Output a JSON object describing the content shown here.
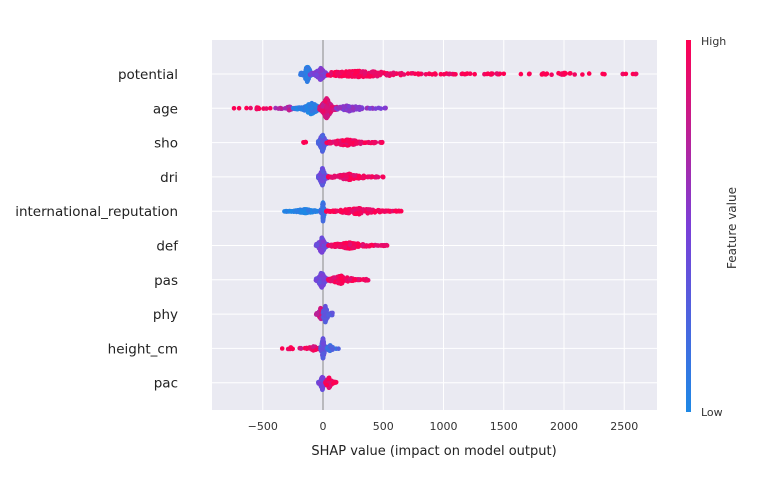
{
  "chart_data": {
    "type": "scatter",
    "subtype": "shap-beeswarm",
    "title": "",
    "xlabel": "SHAP value (impact on model output)",
    "ylabel": "",
    "xlim": [
      -930,
      2800
    ],
    "xticks": [
      -500,
      0,
      500,
      1000,
      1500,
      2000,
      2500
    ],
    "xtick_labels": [
      "−500",
      "0",
      "500",
      "1000",
      "1500",
      "2000",
      "2500"
    ],
    "grid": true,
    "colorbar": {
      "title": "Feature value",
      "high_label": "High",
      "low_label": "Low",
      "low_color": "#1e88e5",
      "high_color": "#ff0052"
    },
    "background_color": "#eaeaf2",
    "features": [
      {
        "name": "potential",
        "clusters": [
          {
            "min": -190,
            "max": -90,
            "center": -130,
            "spread": 8,
            "color": 0.08,
            "n": 120
          },
          {
            "min": -110,
            "max": 40,
            "center": -20,
            "spread": 6,
            "color": 0.5,
            "n": 140
          },
          {
            "min": 40,
            "max": 1550,
            "center": 300,
            "spread": 3,
            "color": 0.97,
            "n": 260
          },
          {
            "min": 1600,
            "max": 2600,
            "center": 2000,
            "spread": 1,
            "color": 1.0,
            "n": 34
          }
        ]
      },
      {
        "name": "age",
        "clusters": [
          {
            "min": -770,
            "max": -400,
            "center": -550,
            "spread": 1,
            "color": 1.0,
            "n": 12
          },
          {
            "min": -400,
            "max": -180,
            "center": -280,
            "spread": 2,
            "color": 0.7,
            "n": 26
          },
          {
            "min": -250,
            "max": -30,
            "center": -100,
            "spread": 6,
            "color": 0.05,
            "n": 160
          },
          {
            "min": -30,
            "max": 120,
            "center": 30,
            "spread": 10,
            "color": 0.85,
            "n": 260
          },
          {
            "min": 100,
            "max": 520,
            "center": 220,
            "spread": 3,
            "color": 0.55,
            "n": 90
          }
        ]
      },
      {
        "name": "sho",
        "clusters": [
          {
            "min": -200,
            "max": -120,
            "center": -160,
            "spread": 1,
            "color": 1.0,
            "n": 4
          },
          {
            "min": -40,
            "max": 40,
            "center": -5,
            "spread": 9,
            "color": 0.3,
            "n": 160
          },
          {
            "min": 30,
            "max": 500,
            "center": 200,
            "spread": 3,
            "color": 0.95,
            "n": 160
          }
        ]
      },
      {
        "name": "dri",
        "clusters": [
          {
            "min": -40,
            "max": 40,
            "center": -5,
            "spread": 9,
            "color": 0.4,
            "n": 170
          },
          {
            "min": 40,
            "max": 520,
            "center": 220,
            "spread": 3,
            "color": 0.95,
            "n": 150
          }
        ]
      },
      {
        "name": "international_reputation",
        "clusters": [
          {
            "min": -320,
            "max": -20,
            "center": -150,
            "spread": 2,
            "color": 0.02,
            "n": 150
          },
          {
            "min": -20,
            "max": 20,
            "center": 0,
            "spread": 10,
            "color": 0.15,
            "n": 60
          },
          {
            "min": 20,
            "max": 650,
            "center": 300,
            "spread": 3,
            "color": 0.98,
            "n": 200
          }
        ]
      },
      {
        "name": "def",
        "clusters": [
          {
            "min": -60,
            "max": 40,
            "center": -10,
            "spread": 8,
            "color": 0.45,
            "n": 160
          },
          {
            "min": 40,
            "max": 580,
            "center": 220,
            "spread": 3,
            "color": 0.95,
            "n": 170
          }
        ]
      },
      {
        "name": "pas",
        "clusters": [
          {
            "min": -60,
            "max": 40,
            "center": -10,
            "spread": 8,
            "color": 0.45,
            "n": 170
          },
          {
            "min": 40,
            "max": 380,
            "center": 150,
            "spread": 4,
            "color": 0.95,
            "n": 170
          }
        ]
      },
      {
        "name": "phy",
        "clusters": [
          {
            "min": -60,
            "max": 0,
            "center": -20,
            "spread": 6,
            "color": 0.8,
            "n": 80
          },
          {
            "min": 0,
            "max": 80,
            "center": 20,
            "spread": 8,
            "color": 0.35,
            "n": 110
          }
        ]
      },
      {
        "name": "height_cm",
        "clusters": [
          {
            "min": -340,
            "max": -200,
            "center": -270,
            "spread": 1,
            "color": 1.0,
            "n": 8
          },
          {
            "min": -200,
            "max": -20,
            "center": -80,
            "spread": 2,
            "color": 0.9,
            "n": 40
          },
          {
            "min": -20,
            "max": 30,
            "center": 0,
            "spread": 10,
            "color": 0.35,
            "n": 170
          },
          {
            "min": 30,
            "max": 130,
            "center": 60,
            "spread": 3,
            "color": 0.2,
            "n": 30
          }
        ]
      },
      {
        "name": "pac",
        "clusters": [
          {
            "min": -40,
            "max": 20,
            "center": -5,
            "spread": 7,
            "color": 0.45,
            "n": 110
          },
          {
            "min": 20,
            "max": 110,
            "center": 50,
            "spread": 5,
            "color": 0.95,
            "n": 90
          }
        ]
      }
    ]
  }
}
